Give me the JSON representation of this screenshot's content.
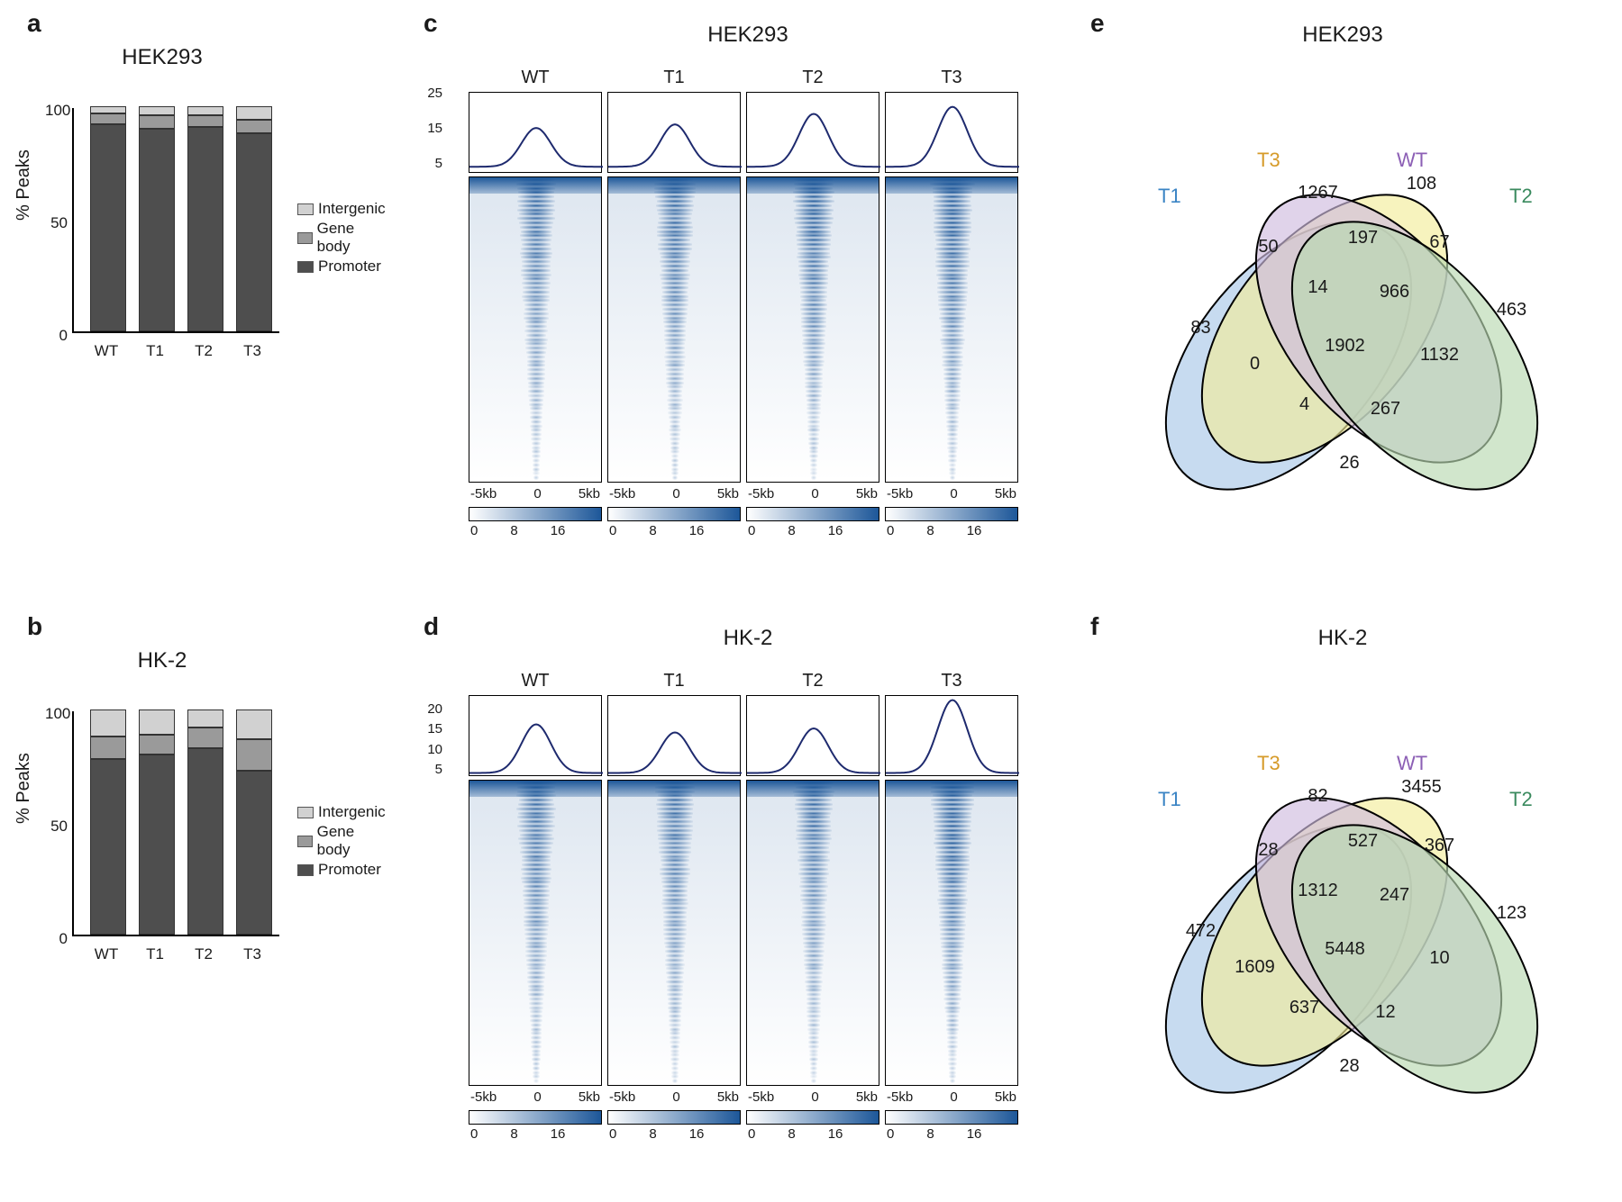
{
  "panel_labels": {
    "a": "a",
    "b": "b",
    "c": "c",
    "d": "d",
    "e": "e",
    "f": "f"
  },
  "cell_lines": {
    "top": "HEK293",
    "bot": "HK-2"
  },
  "bar_categories": [
    "WT",
    "T1",
    "T2",
    "T3"
  ],
  "legend_items": [
    "Intergenic",
    "Gene body",
    "Promoter"
  ],
  "legend_colors": [
    "#d1d1d1",
    "#9a9a9a",
    "#4e4e4e"
  ],
  "background_color": "#ffffff",
  "bars_a": {
    "ylabel": "% Peaks",
    "yticks": [
      0,
      50,
      100
    ],
    "colors": {
      "Promoter": "#4e4e4e",
      "Gene body": "#9a9a9a",
      "Intergenic": "#d1d1d1"
    },
    "values": [
      {
        "Promoter": 92,
        "Gene body": 5,
        "Intergenic": 3
      },
      {
        "Promoter": 90,
        "Gene body": 6,
        "Intergenic": 4
      },
      {
        "Promoter": 91,
        "Gene body": 5,
        "Intergenic": 4
      },
      {
        "Promoter": 88,
        "Gene body": 6,
        "Intergenic": 6
      }
    ]
  },
  "bars_b": {
    "ylabel": "% Peaks",
    "yticks": [
      0,
      50,
      100
    ],
    "colors": {
      "Promoter": "#4e4e4e",
      "Gene body": "#9a9a9a",
      "Intergenic": "#d1d1d1"
    },
    "values": [
      {
        "Promoter": 78,
        "Gene body": 10,
        "Intergenic": 12
      },
      {
        "Promoter": 80,
        "Gene body": 9,
        "Intergenic": 11
      },
      {
        "Promoter": 83,
        "Gene body": 9,
        "Intergenic": 8
      },
      {
        "Promoter": 73,
        "Gene body": 14,
        "Intergenic": 13
      }
    ]
  },
  "heatmap_conditions": [
    "WT",
    "T1",
    "T2",
    "T3"
  ],
  "heatmap_xaxis": [
    "-5kb",
    "0",
    "5kb"
  ],
  "heatmap_xaxis_d": [
    "-5kb",
    "0",
    "5kb"
  ],
  "colorbar_ticks_c": [
    "0",
    "8",
    "16"
  ],
  "colorbar_ticks_d": [
    "0",
    "8",
    "16"
  ],
  "profile_c": {
    "yticks": [
      5,
      15,
      25
    ],
    "peaks": [
      15,
      16,
      19,
      21
    ],
    "line_color": "#1e2a6e",
    "ylim": [
      2,
      25
    ]
  },
  "profile_d": {
    "yticks": [
      5,
      10,
      15,
      20
    ],
    "peaks": [
      16,
      14,
      15,
      22
    ],
    "line_color": "#1e2a6e",
    "ylim": [
      3,
      23
    ]
  },
  "heatmap_gradient": {
    "low": "#ffffff",
    "high": "#1d5799"
  },
  "venn_sets": [
    "T1",
    "T3",
    "WT",
    "T2"
  ],
  "venn_colors": {
    "T1": "#a9c7e8",
    "T3": "#f3ec9b",
    "WT": "#d0bcde",
    "T2": "#b8d9b0"
  },
  "venn_label_colors": {
    "T1": "#3a84c4",
    "T3": "#d69b2a",
    "WT": "#8c5fb5",
    "T2": "#3a8a5e"
  },
  "venn_e": {
    "title": "HEK293",
    "regions": {
      "T1_only": 83,
      "T3_only": 1267,
      "WT_only": 108,
      "T2_only": 463,
      "T1_T3": 50,
      "T3_WT": 197,
      "WT_T2": 67,
      "T1_T3_WT": 14,
      "T3_WT_T2": 966,
      "T1_WT": 0,
      "T3_T2": 1132,
      "all": 1902,
      "T1_WT_T2": 4,
      "T1_T3_T2": 267,
      "T1_T2": 26
    }
  },
  "venn_f": {
    "title": "HK-2",
    "regions": {
      "T1_only": 472,
      "T3_only": 82,
      "WT_only": 3455,
      "T2_only": 123,
      "T1_T3": 28,
      "T3_WT": 527,
      "WT_T2": 367,
      "T1_T3_WT": 1312,
      "T3_WT_T2": 247,
      "T1_WT": 1609,
      "T3_T2": 10,
      "all": 5448,
      "T1_WT_T2": 637,
      "T1_T3_T2": 12,
      "T1_T2": 28
    }
  },
  "fonts": {
    "label": 28,
    "title": 24,
    "axis": 18,
    "tick": 16,
    "venn_num": 20
  }
}
